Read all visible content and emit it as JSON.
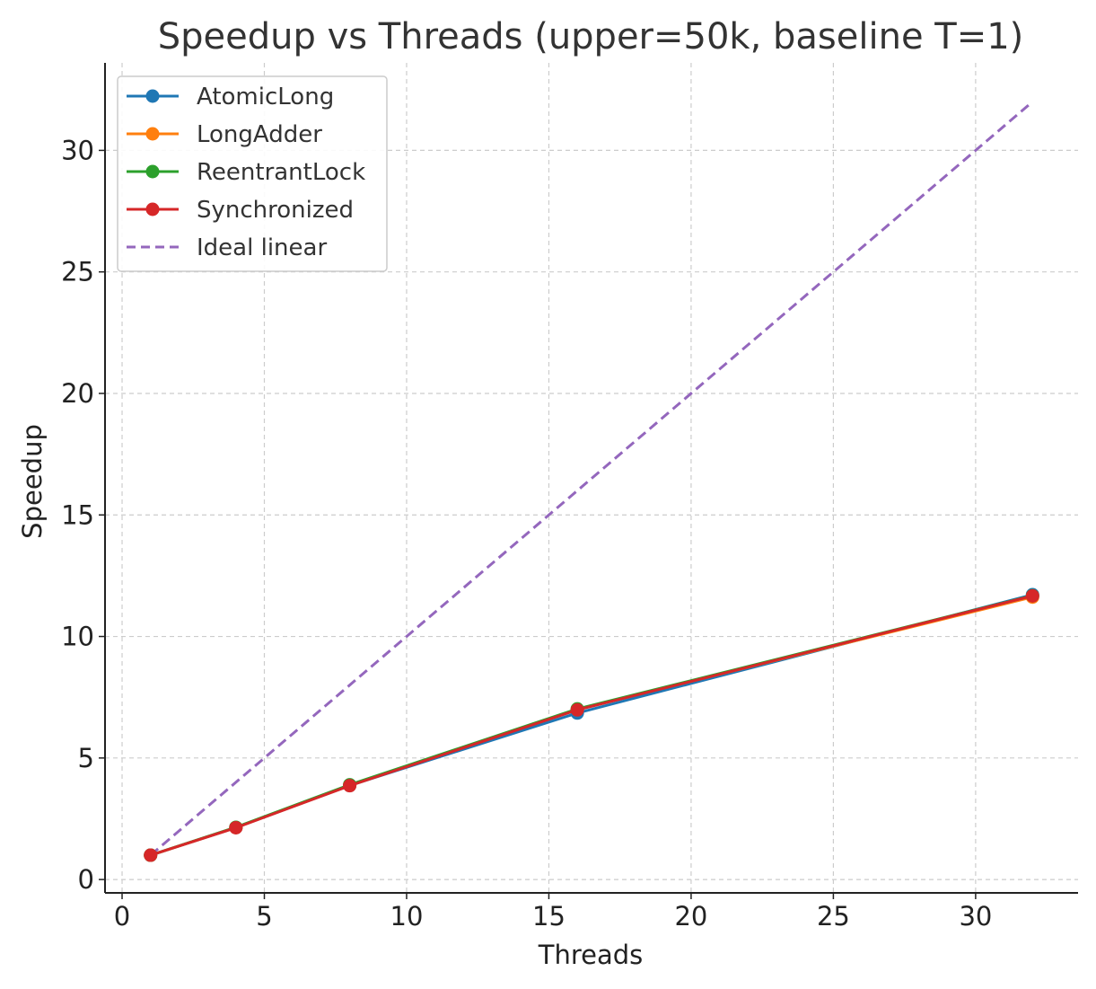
{
  "chart_data": {
    "type": "line",
    "title": "Speedup vs Threads (upper=50k, baseline T=1)",
    "xlabel": "Threads",
    "ylabel": "Speedup",
    "xlim": [
      -0.6,
      33.6
    ],
    "ylim": [
      -0.55,
      33.6
    ],
    "xticks": [
      0,
      5,
      10,
      15,
      20,
      25,
      30
    ],
    "yticks": [
      0,
      5,
      10,
      15,
      20,
      25,
      30
    ],
    "grid": true,
    "legend_position": "top-left",
    "x": [
      1,
      4,
      8,
      16,
      32
    ],
    "series": [
      {
        "name": "AtomicLong",
        "color": "#1f77b4",
        "values": [
          1.0,
          2.14,
          3.87,
          6.85,
          11.72
        ],
        "style": "solid",
        "marker": "circle"
      },
      {
        "name": "LongAdder",
        "color": "#ff7f0e",
        "values": [
          1.0,
          2.14,
          3.88,
          7.0,
          11.62
        ],
        "style": "solid",
        "marker": "circle"
      },
      {
        "name": "ReentrantLock",
        "color": "#2ca02c",
        "values": [
          1.0,
          2.15,
          3.9,
          7.02,
          11.68
        ],
        "style": "solid",
        "marker": "circle"
      },
      {
        "name": "Synchronized",
        "color": "#d62728",
        "values": [
          1.0,
          2.13,
          3.86,
          6.98,
          11.67
        ],
        "style": "solid",
        "marker": "circle"
      }
    ],
    "ideal": {
      "name": "Ideal linear",
      "color": "#9467bd",
      "x": [
        1,
        32
      ],
      "values": [
        1,
        32
      ],
      "style": "dashed"
    }
  }
}
